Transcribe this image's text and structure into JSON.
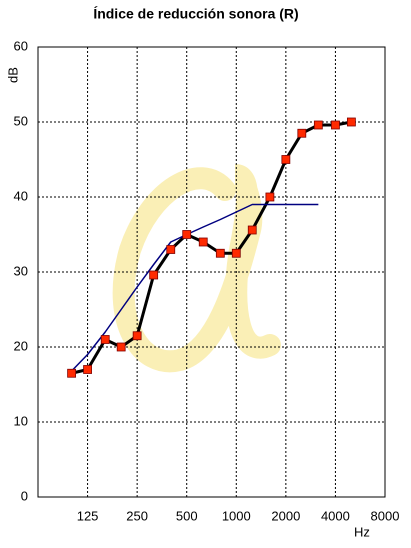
{
  "chart_data": {
    "type": "line",
    "title": "Índice de reducción sonora (R)",
    "y_label": "dB",
    "x_label": "Hz",
    "x": [
      100,
      125,
      160,
      200,
      250,
      315,
      400,
      500,
      630,
      800,
      1000,
      1250,
      1600,
      2000,
      2500,
      3150,
      4000,
      5000
    ],
    "series": [
      {
        "color": "#000000",
        "marker_color": "#ff2a00",
        "values": [
          16.5,
          17,
          21,
          20,
          21.5,
          29.6,
          33,
          35,
          34,
          32.5,
          32.5,
          35.6,
          40,
          45,
          48.5,
          49.6,
          49.6,
          50
        ]
      },
      {
        "color": "#000080",
        "values": [
          16.8,
          19,
          22,
          25,
          28,
          31,
          34,
          35,
          36,
          37,
          38,
          39,
          39,
          39,
          39,
          39,
          null,
          null
        ]
      }
    ],
    "log_x": true,
    "xlim": [
      62.5,
      8000
    ],
    "xticks": [
      125,
      250,
      500,
      1000,
      2000,
      4000,
      8000
    ],
    "ylim": [
      0,
      60
    ],
    "yticks": [
      0,
      10,
      20,
      30,
      40,
      50,
      60
    ],
    "grid": true
  }
}
